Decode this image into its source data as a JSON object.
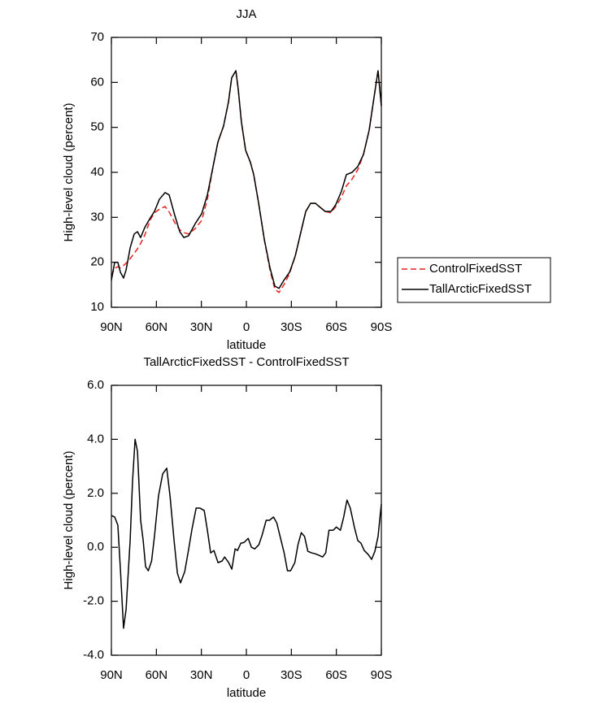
{
  "chart_data": [
    {
      "type": "line",
      "title": "JJA",
      "xlabel": "latitude",
      "ylabel": "High-level cloud (percent)",
      "xlim": [
        90,
        -90
      ],
      "ylim": [
        10,
        70
      ],
      "xticks": [
        {
          "value": 90,
          "label": "90N"
        },
        {
          "value": 60,
          "label": "60N"
        },
        {
          "value": 30,
          "label": "30N"
        },
        0,
        {
          "value": -30,
          "label": "30S"
        },
        {
          "value": -60,
          "label": "60S"
        },
        {
          "value": -90,
          "label": "90S"
        }
      ],
      "yticks": [
        10,
        20,
        30,
        40,
        50,
        60,
        70
      ],
      "legend": "right",
      "x": [
        90.0,
        87.8,
        85.7,
        84.0,
        81.9,
        80.2,
        77.5,
        74.8,
        72.6,
        70.5,
        67.8,
        64.0,
        61.3,
        58.0,
        54.2,
        51.5,
        47.7,
        44.4,
        41.7,
        38.5,
        34.1,
        29.8,
        26.0,
        22.2,
        19.0,
        15.2,
        11.9,
        9.8,
        7.0,
        5.4,
        3.3,
        0.5,
        -2.7,
        -4.9,
        -8.2,
        -12.0,
        -15.8,
        -19.0,
        -21.8,
        -25.0,
        -28.8,
        -32.6,
        -36.4,
        -39.6,
        -42.8,
        -46.1,
        -49.3,
        -52.6,
        -56.4,
        -59.6,
        -63.4,
        -66.7,
        -70.5,
        -74.3,
        -78.1,
        -81.9,
        -85.1,
        -87.8,
        -90.0
      ],
      "series": [
        {
          "name": "ControlFixedSST",
          "color": "#e8211d",
          "linestyle": "dashed",
          "values": [
            17.0,
            18.7,
            19.0,
            18.8,
            19.3,
            19.8,
            20.8,
            22.0,
            23.0,
            24.2,
            26.0,
            29.5,
            31.0,
            31.8,
            32.4,
            31.2,
            28.8,
            27.2,
            26.6,
            26.3,
            27.5,
            29.3,
            34.0,
            41.3,
            46.7,
            50.3,
            55.7,
            61.0,
            62.6,
            58.4,
            51.2,
            44.9,
            42.2,
            39.5,
            33.1,
            25.0,
            18.2,
            14.0,
            13.3,
            15.0,
            17.5,
            21.4,
            26.8,
            31.3,
            33.1,
            33.1,
            32.2,
            31.3,
            31.0,
            32.4,
            34.5,
            37.0,
            38.5,
            40.6,
            44.0,
            49.4,
            56.6,
            62.6,
            54.8
          ]
        },
        {
          "name": "TallArcticFixedSST",
          "color": "#000000",
          "linestyle": "solid",
          "values": [
            16.0,
            20.0,
            20.0,
            17.8,
            16.5,
            18.3,
            23.2,
            26.3,
            26.8,
            25.5,
            27.7,
            29.9,
            31.3,
            34.0,
            35.5,
            35.0,
            30.4,
            26.8,
            25.5,
            25.9,
            28.6,
            30.8,
            35.0,
            41.3,
            46.7,
            50.3,
            55.7,
            61.0,
            62.6,
            58.4,
            51.2,
            44.9,
            42.2,
            39.5,
            33.1,
            25.0,
            18.7,
            14.7,
            14.2,
            16.0,
            17.8,
            21.4,
            26.8,
            31.3,
            33.1,
            33.1,
            32.2,
            31.3,
            31.3,
            32.8,
            35.8,
            39.5,
            40.0,
            41.3,
            44.0,
            49.4,
            56.6,
            62.6,
            54.8
          ]
        }
      ]
    },
    {
      "type": "line",
      "title": "TallArcticFixedSST - ControlFixedSST",
      "xlabel": "latitude",
      "ylabel": "High-level cloud (percent)",
      "xlim": [
        90,
        -90
      ],
      "ylim": [
        -4,
        6
      ],
      "xticks": [
        {
          "value": 90,
          "label": "90N"
        },
        {
          "value": 60,
          "label": "60N"
        },
        {
          "value": 30,
          "label": "30N"
        },
        0,
        {
          "value": -30,
          "label": "30S"
        },
        {
          "value": -60,
          "label": "60S"
        },
        {
          "value": -90,
          "label": "90S"
        }
      ],
      "yticks": [
        {
          "value": -4,
          "label": "-4.0"
        },
        {
          "value": -2,
          "label": "-2.0"
        },
        {
          "value": 0,
          "label": "0.0"
        },
        {
          "value": 2,
          "label": "2.0"
        },
        {
          "value": 4,
          "label": "4.0"
        },
        {
          "value": 6,
          "label": "6.0"
        }
      ],
      "x": [
        90.0,
        87.8,
        85.7,
        84.0,
        81.9,
        80.2,
        77.5,
        75.9,
        74.2,
        72.6,
        70.5,
        68.8,
        67.2,
        65.4,
        63.2,
        61.3,
        58.6,
        55.8,
        53.1,
        50.9,
        48.2,
        46.0,
        43.9,
        41.1,
        38.9,
        36.2,
        33.5,
        30.9,
        28.1,
        26.0,
        23.8,
        21.6,
        18.9,
        16.2,
        14.5,
        11.8,
        9.7,
        7.5,
        5.9,
        3.7,
        1.5,
        -1.2,
        -3.4,
        -5.6,
        -8.3,
        -10.5,
        -13.2,
        -15.4,
        -18.1,
        -20.3,
        -22.5,
        -25.2,
        -27.4,
        -29.5,
        -32.3,
        -34.4,
        -36.6,
        -38.8,
        -41.0,
        -43.7,
        -45.9,
        -48.6,
        -50.8,
        -52.9,
        -55.1,
        -57.9,
        -60.0,
        -62.7,
        -64.9,
        -67.1,
        -69.3,
        -72.0,
        -74.3,
        -76.4,
        -78.6,
        -81.3,
        -83.5,
        -85.7,
        -87.8,
        -90.0
      ],
      "series": [
        {
          "color": "#000000",
          "linestyle": "solid",
          "values": [
            1.18,
            1.12,
            0.82,
            -0.81,
            -3.0,
            -2.3,
            0.25,
            2.45,
            4.0,
            3.55,
            1.0,
            0.25,
            -0.72,
            -0.87,
            -0.51,
            0.4,
            1.9,
            2.72,
            2.93,
            1.9,
            0.25,
            -0.96,
            -1.32,
            -0.9,
            -0.21,
            0.69,
            1.45,
            1.45,
            1.36,
            0.63,
            -0.21,
            -0.12,
            -0.57,
            -0.51,
            -0.36,
            -0.57,
            -0.81,
            -0.06,
            -0.12,
            0.15,
            0.18,
            0.33,
            0.0,
            -0.06,
            0.09,
            0.45,
            1.0,
            1.0,
            1.12,
            0.9,
            0.4,
            -0.21,
            -0.87,
            -0.87,
            -0.57,
            0.09,
            0.54,
            0.4,
            -0.15,
            -0.21,
            -0.24,
            -0.3,
            -0.36,
            -0.21,
            0.63,
            0.63,
            0.75,
            0.63,
            1.12,
            1.75,
            1.45,
            0.75,
            0.25,
            0.15,
            -0.12,
            -0.27,
            -0.45,
            -0.15,
            0.4,
            1.6
          ]
        }
      ]
    }
  ]
}
